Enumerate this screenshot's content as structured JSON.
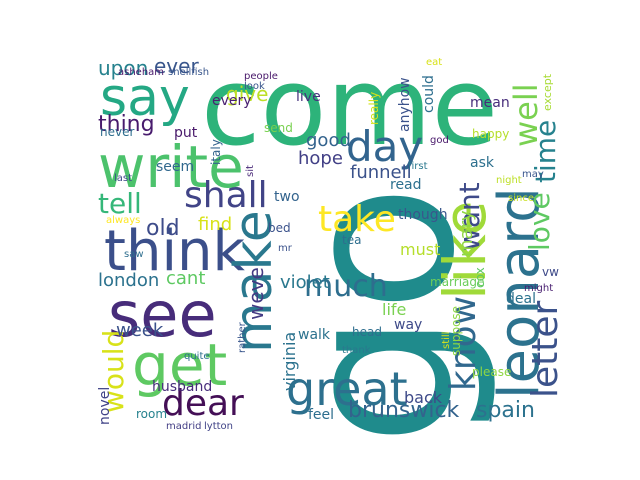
{
  "words": [
    {
      "text": "come",
      "color": "#2db37a"
    },
    {
      "text": "go",
      "color": "#1f8b8c"
    },
    {
      "text": "write",
      "color": "#4cc26c"
    },
    {
      "text": "think",
      "color": "#3b4f8a"
    },
    {
      "text": "leonard",
      "color": "#2c728e"
    },
    {
      "text": "see",
      "color": "#472c7a"
    },
    {
      "text": "make",
      "color": "#2a788e"
    },
    {
      "text": "say",
      "color": "#24a884"
    },
    {
      "text": "like",
      "color": "#a0da39"
    },
    {
      "text": "get",
      "color": "#5ec962"
    },
    {
      "text": "great",
      "color": "#2d708e"
    },
    {
      "text": "day",
      "color": "#32648e"
    },
    {
      "text": "shall",
      "color": "#414487"
    },
    {
      "text": "know",
      "color": "#31688e"
    },
    {
      "text": "dear",
      "color": "#440f56"
    },
    {
      "text": "take",
      "color": "#fde725"
    },
    {
      "text": "letter",
      "color": "#3b528b"
    },
    {
      "text": "much",
      "color": "#2e6e8e"
    },
    {
      "text": "well",
      "color": "#7ad151"
    },
    {
      "text": "love",
      "color": "#5ec962"
    },
    {
      "text": "time",
      "color": "#26828e"
    },
    {
      "text": "want",
      "color": "#3e4a89"
    },
    {
      "text": "would",
      "color": "#d8e219"
    },
    {
      "text": "tell",
      "color": "#35b779"
    },
    {
      "text": "brunswick",
      "color": "#33638d"
    },
    {
      "text": "spain",
      "color": "#2c728e"
    },
    {
      "text": "old",
      "color": "#3e4c8a"
    },
    {
      "text": "thing",
      "color": "#481b6d"
    },
    {
      "text": "give",
      "color": "#bddf26"
    },
    {
      "text": "ever",
      "color": "#39568c"
    },
    {
      "text": "upon",
      "color": "#26828e"
    },
    {
      "text": "good",
      "color": "#33638d"
    },
    {
      "text": "hope",
      "color": "#424086"
    },
    {
      "text": "funnell",
      "color": "#3b528b"
    },
    {
      "text": "weve",
      "color": "#443a83"
    },
    {
      "text": "violet",
      "color": "#2a788e"
    },
    {
      "text": "cant",
      "color": "#5ec962"
    },
    {
      "text": "find",
      "color": "#d8e219"
    },
    {
      "text": "mary",
      "color": "#8fd744"
    },
    {
      "text": "london",
      "color": "#2c728e"
    },
    {
      "text": "week",
      "color": "#3b528b"
    },
    {
      "text": "husband",
      "color": "#472d7b"
    },
    {
      "text": "feel",
      "color": "#2e6e8e"
    },
    {
      "text": "back",
      "color": "#3e4a89"
    },
    {
      "text": "life",
      "color": "#7ad151"
    },
    {
      "text": "must",
      "color": "#b5de2b"
    },
    {
      "text": "read",
      "color": "#2d708e"
    },
    {
      "text": "though",
      "color": "#39568c"
    },
    {
      "text": "marriage",
      "color": "#6ccd5a"
    },
    {
      "text": "deal",
      "color": "#2c728e"
    },
    {
      "text": "vw",
      "color": "#3e4a89"
    },
    {
      "text": "walk",
      "color": "#2c728e"
    },
    {
      "text": "way",
      "color": "#3e4a89"
    },
    {
      "text": "head",
      "color": "#2e6e8e"
    },
    {
      "text": "please",
      "color": "#8fd744"
    },
    {
      "text": "suppose",
      "color": "#8fd744"
    },
    {
      "text": "cox",
      "color": "#5ec962"
    },
    {
      "text": "virginia",
      "color": "#2c728e"
    },
    {
      "text": "novel",
      "color": "#404387"
    },
    {
      "text": "room",
      "color": "#26828e"
    },
    {
      "text": "every",
      "color": "#481f70"
    },
    {
      "text": "live",
      "color": "#46337e"
    },
    {
      "text": "put",
      "color": "#48186a"
    },
    {
      "text": "send",
      "color": "#7ad151"
    },
    {
      "text": "seem",
      "color": "#31688e"
    },
    {
      "text": "two",
      "color": "#33638d"
    },
    {
      "text": "bed",
      "color": "#3b528b"
    },
    {
      "text": "tea",
      "color": "#2e6e8e"
    },
    {
      "text": "ask",
      "color": "#2d708e"
    },
    {
      "text": "happy",
      "color": "#b5de2b"
    },
    {
      "text": "mean",
      "color": "#472d7b"
    },
    {
      "text": "could",
      "color": "#2e6e8e"
    },
    {
      "text": "anyhow",
      "color": "#3b528b"
    },
    {
      "text": "really",
      "color": "#d2e21b"
    },
    {
      "text": "except",
      "color": "#a8db34"
    },
    {
      "text": "never",
      "color": "#2e6e8e"
    },
    {
      "text": "italy",
      "color": "#33638d"
    },
    {
      "text": "asheham",
      "color": "#48186a"
    },
    {
      "text": "shellfish",
      "color": "#39568c"
    },
    {
      "text": "people",
      "color": "#48186a"
    },
    {
      "text": "eat",
      "color": "#d8e219"
    },
    {
      "text": "look",
      "color": "#39568c"
    },
    {
      "text": "sit",
      "color": "#482878"
    },
    {
      "text": "last",
      "color": "#3e4a89"
    },
    {
      "text": "god",
      "color": "#48186a"
    },
    {
      "text": "first",
      "color": "#2a788e"
    },
    {
      "text": "night",
      "color": "#bddf26"
    },
    {
      "text": "may",
      "color": "#39568c"
    },
    {
      "text": "since",
      "color": "#c8e020"
    },
    {
      "text": "always",
      "color": "#fde725"
    },
    {
      "text": "saw",
      "color": "#2e6e8e"
    },
    {
      "text": "mr",
      "color": "#3b528b"
    },
    {
      "text": "quite",
      "color": "#2d708e"
    },
    {
      "text": "rather",
      "color": "#39568c"
    },
    {
      "text": "thank",
      "color": "#2a788e"
    },
    {
      "text": "still",
      "color": "#d8e219"
    },
    {
      "text": "might",
      "color": "#481f70"
    },
    {
      "text": "madrid",
      "color": "#433e85"
    },
    {
      "text": "lytton",
      "color": "#404387"
    }
  ]
}
